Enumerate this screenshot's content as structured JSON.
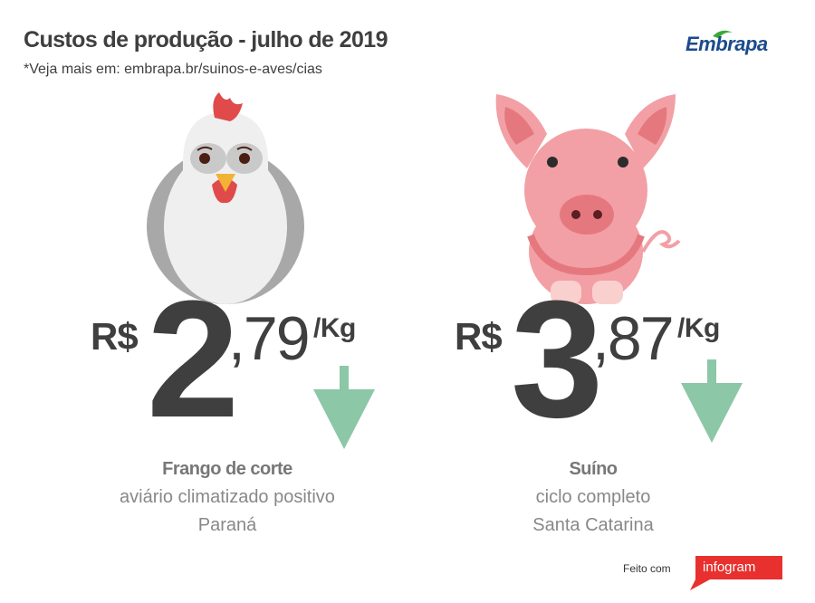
{
  "header": {
    "title": "Custos de produção - julho de 2019",
    "subtitle": "*Veja mais em: embrapa.br/suinos-e-aves/cias"
  },
  "logo": {
    "text": "Embrapa",
    "color": "#1a4b8c",
    "accent": "#3aaa35"
  },
  "items": [
    {
      "icon": "chicken-icon",
      "currency": "R$",
      "integer": "2",
      "decimal": ",79",
      "unit": "/Kg",
      "trend": "down",
      "name": "Frango de corte",
      "line1": "aviário climatizado positivo",
      "line2": "Paraná"
    },
    {
      "icon": "pig-icon",
      "currency": "R$",
      "integer": "3",
      "decimal": ",87",
      "unit": "/Kg",
      "trend": "down",
      "name": "Suíno",
      "line1": "ciclo completo",
      "line2": "Santa Catarina"
    }
  ],
  "colors": {
    "arrow": "#8cc7a7",
    "text": "#3f3f3f",
    "infogram": "#e8312f"
  },
  "footer": {
    "made_with": "Feito com",
    "brand": "infogram"
  }
}
